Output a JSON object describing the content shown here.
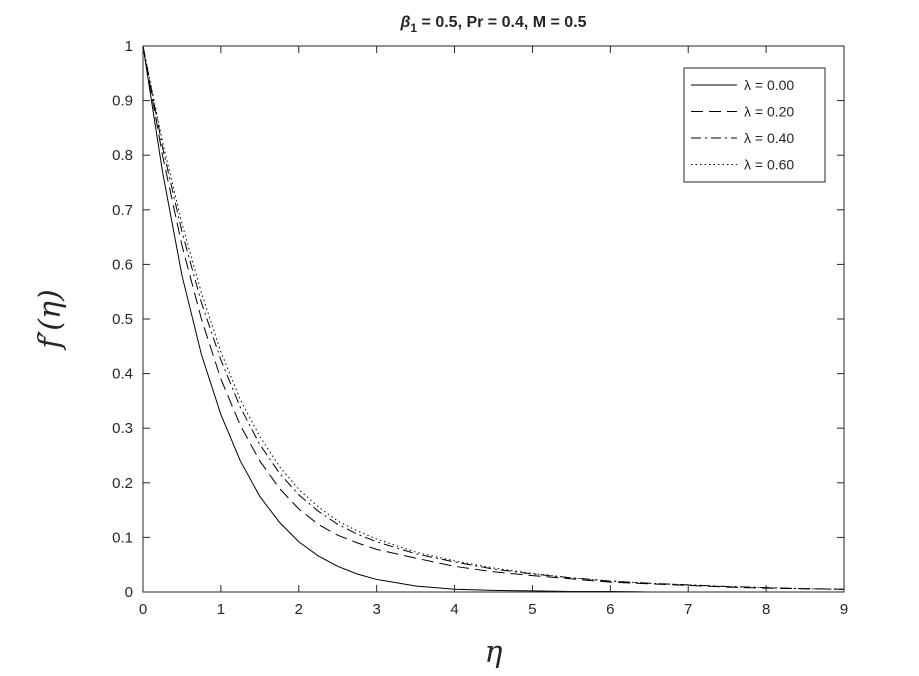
{
  "chart_data": {
    "type": "line",
    "title": {
      "beta_symbol": "β",
      "beta_subscript": "1",
      "rest": " = 0.5, Pr = 0.4, M = 0.5"
    },
    "xlabel": "η",
    "ylabel": "f′(η)",
    "xlim": [
      0,
      9
    ],
    "ylim": [
      0,
      1
    ],
    "xticks": [
      "0",
      "1",
      "2",
      "3",
      "4",
      "5",
      "6",
      "7",
      "8",
      "9"
    ],
    "yticks": [
      "0",
      "0.1",
      "0.2",
      "0.3",
      "0.4",
      "0.5",
      "0.6",
      "0.7",
      "0.8",
      "0.9",
      "1"
    ],
    "grid": false,
    "legend_position": "top-right",
    "line_color": "#000000",
    "x": [
      0,
      0.25,
      0.5,
      0.75,
      1,
      1.25,
      1.5,
      1.75,
      2,
      2.25,
      2.5,
      2.75,
      3,
      3.5,
      4,
      4.5,
      5,
      5.5,
      6,
      6.5,
      7,
      7.5,
      8,
      8.5,
      9
    ],
    "series": [
      {
        "name": "λ = 0.00",
        "dash": "solid",
        "values": [
          1.0,
          0.77,
          0.58,
          0.435,
          0.325,
          0.24,
          0.175,
          0.128,
          0.092,
          0.066,
          0.047,
          0.033,
          0.023,
          0.011,
          0.005,
          0.003,
          0.002,
          0.001,
          0.001,
          0.0,
          0.0,
          0.0,
          0.0,
          0.0,
          0.0
        ]
      },
      {
        "name": "λ = 0.20",
        "dash": "dashed",
        "values": [
          1.0,
          0.8,
          0.635,
          0.5,
          0.39,
          0.305,
          0.24,
          0.19,
          0.152,
          0.124,
          0.104,
          0.09,
          0.078,
          0.062,
          0.047,
          0.037,
          0.03,
          0.024,
          0.018,
          0.015,
          0.012,
          0.009,
          0.007,
          0.006,
          0.005
        ]
      },
      {
        "name": "λ = 0.40",
        "dash": "dashdot",
        "values": [
          1.0,
          0.815,
          0.66,
          0.53,
          0.425,
          0.338,
          0.27,
          0.218,
          0.178,
          0.148,
          0.124,
          0.106,
          0.092,
          0.07,
          0.055,
          0.042,
          0.033,
          0.026,
          0.02,
          0.016,
          0.013,
          0.01,
          0.008,
          0.006,
          0.005
        ]
      },
      {
        "name": "λ = 0.60",
        "dash": "dotted",
        "values": [
          1.0,
          0.825,
          0.675,
          0.548,
          0.44,
          0.352,
          0.285,
          0.23,
          0.188,
          0.156,
          0.13,
          0.112,
          0.097,
          0.073,
          0.057,
          0.044,
          0.034,
          0.026,
          0.02,
          0.016,
          0.013,
          0.01,
          0.008,
          0.006,
          0.005
        ]
      }
    ]
  }
}
